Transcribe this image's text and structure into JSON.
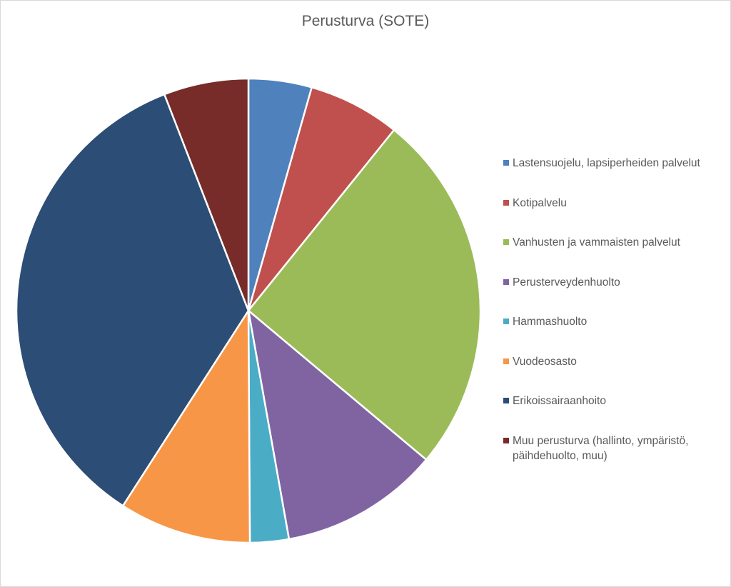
{
  "chart_data": {
    "type": "pie",
    "title": "Perusturva (SOTE)",
    "legend_position": "right",
    "slices": [
      {
        "label": "Lastensuojelu, lapsiperheiden palvelut",
        "value": 4.4,
        "color": "#4f81bd"
      },
      {
        "label": "Kotipalvelu",
        "value": 6.4,
        "color": "#c0504d"
      },
      {
        "label": "Vanhusten ja vammaisten palvelut",
        "value": 25.3,
        "color": "#9bbb59"
      },
      {
        "label": "Perusterveydenhuolto",
        "value": 11.1,
        "color": "#8064a2"
      },
      {
        "label": "Hammashuolto",
        "value": 2.7,
        "color": "#4bacc6"
      },
      {
        "label": "Vuodeosasto",
        "value": 9.2,
        "color": "#f79646"
      },
      {
        "label": "Erikoissairaanhoito",
        "value": 35.0,
        "color": "#2c4d75"
      },
      {
        "label": "Muu perusturva (hallinto, ympäristö, päihdehuolto, muu)",
        "value": 5.9,
        "color": "#772c2a"
      }
    ]
  }
}
